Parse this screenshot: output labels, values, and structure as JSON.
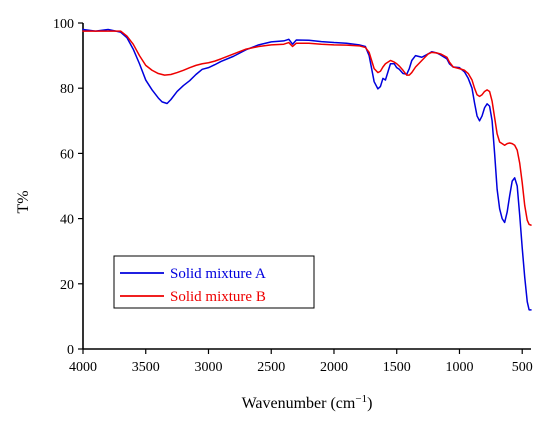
{
  "chart_data": {
    "type": "line",
    "title": "",
    "xlabel": "Wavenumber (cm",
    "xlabel_sup": "−1",
    "xlabel_close": ")",
    "ylabel": "T%",
    "xlim": [
      4000,
      430
    ],
    "ylim": [
      0,
      100
    ],
    "x_reversed": true,
    "xticks": [
      4000,
      3500,
      3000,
      2500,
      2000,
      1500,
      1000,
      500
    ],
    "yticks": [
      0,
      20,
      40,
      60,
      80,
      100
    ],
    "grid": false,
    "legend_position": "bottom-left",
    "series": [
      {
        "name": "Solid mixture A",
        "color": "#0000dd",
        "points": [
          [
            4000,
            98.0
          ],
          [
            3900,
            97.5
          ],
          [
            3800,
            98.0
          ],
          [
            3700,
            97.2
          ],
          [
            3650,
            95.5
          ],
          [
            3600,
            92.0
          ],
          [
            3550,
            87.5
          ],
          [
            3500,
            82.5
          ],
          [
            3450,
            79.5
          ],
          [
            3400,
            77.0
          ],
          [
            3370,
            75.8
          ],
          [
            3330,
            75.3
          ],
          [
            3300,
            76.5
          ],
          [
            3250,
            79.0
          ],
          [
            3200,
            80.8
          ],
          [
            3150,
            82.3
          ],
          [
            3100,
            84.2
          ],
          [
            3050,
            85.8
          ],
          [
            3000,
            86.3
          ],
          [
            2950,
            87.2
          ],
          [
            2900,
            88.2
          ],
          [
            2800,
            89.8
          ],
          [
            2700,
            91.8
          ],
          [
            2600,
            93.3
          ],
          [
            2500,
            94.2
          ],
          [
            2400,
            94.5
          ],
          [
            2360,
            95.0
          ],
          [
            2330,
            93.5
          ],
          [
            2300,
            94.8
          ],
          [
            2200,
            94.7
          ],
          [
            2100,
            94.3
          ],
          [
            2000,
            94.0
          ],
          [
            1900,
            93.8
          ],
          [
            1800,
            93.3
          ],
          [
            1750,
            92.8
          ],
          [
            1720,
            90.0
          ],
          [
            1700,
            86.0
          ],
          [
            1680,
            82.0
          ],
          [
            1650,
            79.8
          ],
          [
            1630,
            80.5
          ],
          [
            1610,
            83.0
          ],
          [
            1590,
            82.5
          ],
          [
            1570,
            85.0
          ],
          [
            1550,
            87.5
          ],
          [
            1520,
            87.5
          ],
          [
            1500,
            86.3
          ],
          [
            1480,
            85.8
          ],
          [
            1450,
            84.5
          ],
          [
            1420,
            84.3
          ],
          [
            1400,
            86.0
          ],
          [
            1380,
            88.5
          ],
          [
            1350,
            90.0
          ],
          [
            1300,
            89.5
          ],
          [
            1250,
            90.5
          ],
          [
            1220,
            91.2
          ],
          [
            1180,
            90.8
          ],
          [
            1150,
            90.2
          ],
          [
            1100,
            89.0
          ],
          [
            1080,
            87.5
          ],
          [
            1050,
            86.5
          ],
          [
            1000,
            86.3
          ],
          [
            960,
            85.0
          ],
          [
            930,
            83.0
          ],
          [
            900,
            80.0
          ],
          [
            880,
            75.5
          ],
          [
            860,
            71.5
          ],
          [
            840,
            70.0
          ],
          [
            820,
            71.5
          ],
          [
            800,
            74.0
          ],
          [
            780,
            75.2
          ],
          [
            760,
            74.5
          ],
          [
            740,
            70.0
          ],
          [
            720,
            60.0
          ],
          [
            700,
            49.0
          ],
          [
            680,
            43.0
          ],
          [
            660,
            40.0
          ],
          [
            640,
            38.8
          ],
          [
            620,
            42.0
          ],
          [
            600,
            47.0
          ],
          [
            580,
            51.5
          ],
          [
            560,
            52.5
          ],
          [
            540,
            50.0
          ],
          [
            520,
            41.0
          ],
          [
            500,
            31.0
          ],
          [
            480,
            22.0
          ],
          [
            460,
            14.5
          ],
          [
            445,
            12.0
          ],
          [
            430,
            12.0
          ]
        ]
      },
      {
        "name": "Solid mixture B",
        "color": "#ee0000",
        "points": [
          [
            4000,
            97.5
          ],
          [
            3900,
            97.5
          ],
          [
            3800,
            97.5
          ],
          [
            3700,
            97.5
          ],
          [
            3650,
            96.0
          ],
          [
            3600,
            93.5
          ],
          [
            3550,
            90.0
          ],
          [
            3500,
            87.0
          ],
          [
            3450,
            85.5
          ],
          [
            3400,
            84.5
          ],
          [
            3350,
            84.0
          ],
          [
            3300,
            84.2
          ],
          [
            3250,
            84.8
          ],
          [
            3200,
            85.5
          ],
          [
            3150,
            86.3
          ],
          [
            3100,
            87.0
          ],
          [
            3050,
            87.5
          ],
          [
            3000,
            87.8
          ],
          [
            2950,
            88.3
          ],
          [
            2900,
            89.0
          ],
          [
            2800,
            90.5
          ],
          [
            2700,
            92.0
          ],
          [
            2600,
            92.8
          ],
          [
            2500,
            93.3
          ],
          [
            2400,
            93.5
          ],
          [
            2360,
            94.0
          ],
          [
            2330,
            92.8
          ],
          [
            2300,
            93.8
          ],
          [
            2200,
            93.8
          ],
          [
            2100,
            93.5
          ],
          [
            2000,
            93.3
          ],
          [
            1900,
            93.2
          ],
          [
            1800,
            93.0
          ],
          [
            1750,
            92.5
          ],
          [
            1720,
            91.0
          ],
          [
            1700,
            88.5
          ],
          [
            1680,
            86.0
          ],
          [
            1650,
            84.8
          ],
          [
            1630,
            85.2
          ],
          [
            1610,
            86.5
          ],
          [
            1590,
            87.5
          ],
          [
            1570,
            88.0
          ],
          [
            1550,
            88.5
          ],
          [
            1520,
            88.0
          ],
          [
            1500,
            87.5
          ],
          [
            1480,
            86.8
          ],
          [
            1450,
            85.5
          ],
          [
            1420,
            84.0
          ],
          [
            1400,
            84.0
          ],
          [
            1380,
            84.8
          ],
          [
            1350,
            86.5
          ],
          [
            1300,
            88.5
          ],
          [
            1250,
            90.5
          ],
          [
            1220,
            91.0
          ],
          [
            1180,
            90.8
          ],
          [
            1150,
            90.5
          ],
          [
            1100,
            89.5
          ],
          [
            1080,
            88.0
          ],
          [
            1050,
            86.5
          ],
          [
            1000,
            86.0
          ],
          [
            960,
            85.5
          ],
          [
            930,
            84.5
          ],
          [
            900,
            82.5
          ],
          [
            880,
            80.0
          ],
          [
            860,
            78.0
          ],
          [
            840,
            77.5
          ],
          [
            820,
            78.0
          ],
          [
            800,
            79.0
          ],
          [
            780,
            79.5
          ],
          [
            760,
            79.0
          ],
          [
            740,
            76.0
          ],
          [
            720,
            71.0
          ],
          [
            700,
            66.0
          ],
          [
            680,
            63.5
          ],
          [
            660,
            63.0
          ],
          [
            640,
            62.5
          ],
          [
            620,
            63.0
          ],
          [
            600,
            63.2
          ],
          [
            580,
            63.0
          ],
          [
            560,
            62.5
          ],
          [
            540,
            61.0
          ],
          [
            520,
            57.0
          ],
          [
            500,
            51.0
          ],
          [
            480,
            44.0
          ],
          [
            460,
            39.5
          ],
          [
            445,
            38.2
          ],
          [
            430,
            38.0
          ]
        ]
      }
    ]
  }
}
